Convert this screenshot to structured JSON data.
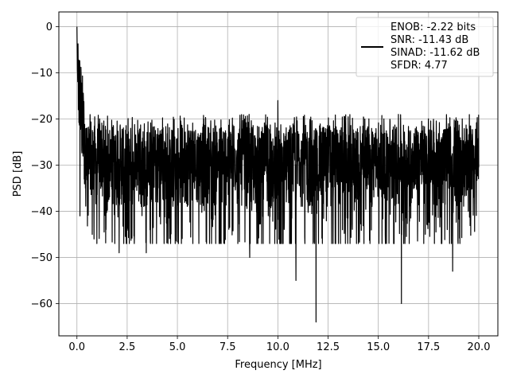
{
  "chart_data": {
    "type": "line",
    "xlabel": "Frequency [MHz]",
    "ylabel": "PSD [dB]",
    "xlim": [
      -0.9,
      20.95
    ],
    "ylim": [
      -67,
      3.2
    ],
    "xticks": [
      0.0,
      2.5,
      5.0,
      7.5,
      10.0,
      12.5,
      15.0,
      17.5,
      20.0
    ],
    "xtick_labels": [
      "0.0",
      "2.5",
      "5.0",
      "7.5",
      "10.0",
      "12.5",
      "15.0",
      "17.5",
      "20.0"
    ],
    "yticks": [
      0,
      -10,
      -20,
      -30,
      -40,
      -50,
      -60
    ],
    "ytick_labels": [
      "0",
      "−10",
      "−20",
      "−30",
      "−40",
      "−50",
      "−60"
    ],
    "grid": true,
    "legend_position": "top-right",
    "series": [
      {
        "name": "ENOB: -2.22 bits\nSNR: -11.43 dB\nSINAD: -11.62 dB\nSFDR: 4.77",
        "legend_lines": [
          "ENOB: -2.22 bits",
          "SNR: -11.43 dB",
          "SINAD: -11.62 dB",
          "SFDR: 4.77"
        ],
        "color": "#000000",
        "x_range": [
          0,
          20
        ],
        "start_value": 0,
        "noise_floor_mean": -29,
        "notable_points": [
          {
            "x": 0.0,
            "y": 0
          },
          {
            "x": 0.07,
            "y": -18
          },
          {
            "x": 0.15,
            "y": -41
          },
          {
            "x": 0.85,
            "y": -46
          },
          {
            "x": 2.1,
            "y": -49
          },
          {
            "x": 3.45,
            "y": -49
          },
          {
            "x": 8.6,
            "y": -50
          },
          {
            "x": 10.0,
            "y": -16
          },
          {
            "x": 10.9,
            "y": -55
          },
          {
            "x": 11.9,
            "y": -64
          },
          {
            "x": 16.15,
            "y": -60
          },
          {
            "x": 18.7,
            "y": -53
          }
        ]
      }
    ]
  }
}
